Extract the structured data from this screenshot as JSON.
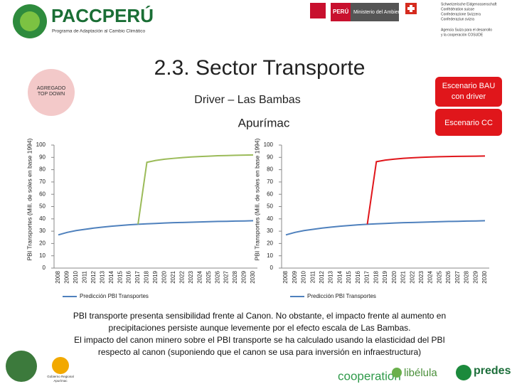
{
  "header": {
    "logo_title": "PACCPERÚ",
    "logo_subtitle": "Programa de Adaptación al Cambio Climático",
    "peru": "PERÚ",
    "ministry": "Ministerio del Ambiente",
    "swiss": [
      "Schweizerische Eidgenossenschaft",
      "Confédération suisse",
      "Confederazione Svizzera",
      "Confederaziun svizra"
    ],
    "agency": [
      "Agencia Suiza para el desarrollo",
      "y la cooperación COSUDE"
    ]
  },
  "slide": {
    "title": "2.3. Sector Transporte",
    "badge": [
      "AGREGADO",
      "TOP DOWN"
    ],
    "driver": "Driver – Las Bambas",
    "region": "Apurímac",
    "scenario_bau": [
      "Escenario BAU",
      "con driver"
    ],
    "scenario_cc": "Escenario CC"
  },
  "chart_data": [
    {
      "type": "line",
      "y_label": "PBI Transportes (Mill. de soles en base 1994)",
      "categories": [
        "2008",
        "2009",
        "2010",
        "2011",
        "2012",
        "2013",
        "2014",
        "2015",
        "2016",
        "2017",
        "2018",
        "2019",
        "2020",
        "2021",
        "2022",
        "2023",
        "2024",
        "2025",
        "2026",
        "2027",
        "2028",
        "2029",
        "2030"
      ],
      "ylim": [
        0,
        100
      ],
      "yticks": [
        0,
        10,
        20,
        30,
        40,
        50,
        60,
        70,
        80,
        90,
        100
      ],
      "series": [
        {
          "name": "Predicción PBI Transportes",
          "color": "#4f81bd",
          "values": [
            27,
            29,
            30.5,
            31.5,
            32.5,
            33.3,
            34,
            34.6,
            35.2,
            35.6,
            36,
            36.3,
            36.6,
            36.9,
            37.1,
            37.3,
            37.5,
            37.7,
            37.9,
            38,
            38.2,
            38.3,
            38.5
          ]
        },
        {
          "color": "#9bbb59",
          "values": [
            null,
            null,
            null,
            null,
            null,
            null,
            null,
            null,
            null,
            35.6,
            86,
            87.5,
            88.5,
            89.2,
            89.8,
            90.3,
            90.7,
            91,
            91.3,
            91.5,
            91.7,
            91.8,
            92
          ]
        }
      ]
    },
    {
      "type": "line",
      "y_label": "PBI Transportes (Mill. de soles en base 1994)",
      "categories": [
        "2008",
        "2009",
        "2010",
        "2011",
        "2012",
        "2013",
        "2014",
        "2015",
        "2016",
        "2017",
        "2018",
        "2019",
        "2020",
        "2021",
        "2022",
        "2023",
        "2024",
        "2025",
        "2026",
        "2027",
        "2028",
        "2029",
        "2030"
      ],
      "ylim": [
        0,
        100
      ],
      "yticks": [
        0,
        10,
        20,
        30,
        40,
        50,
        60,
        70,
        80,
        90,
        100
      ],
      "series": [
        {
          "name": "Predicción PBI Transportes",
          "color": "#4f81bd",
          "values": [
            27,
            29,
            30.5,
            31.5,
            32.5,
            33.3,
            34,
            34.6,
            35.2,
            35.6,
            36,
            36.3,
            36.6,
            36.9,
            37.1,
            37.3,
            37.5,
            37.7,
            37.9,
            38,
            38.2,
            38.3,
            38.5
          ]
        },
        {
          "color": "#e0161b",
          "values": [
            null,
            null,
            null,
            null,
            null,
            null,
            null,
            null,
            null,
            35.6,
            86.5,
            87.8,
            88.6,
            89.2,
            89.7,
            90,
            90.3,
            90.5,
            90.7,
            90.8,
            90.9,
            91,
            91.1
          ]
        }
      ]
    }
  ],
  "body": {
    "lines": [
      "PBI transporte presenta sensibilidad frente al Canon. No obstante, el impacto frente al aumento en",
      "precipitaciones persiste aunque levemente por el efecto escala de Las Bambas.",
      "El impacto del canon minero sobre el PBI transporte se ha calculado usando la elasticidad del PBI",
      "respecto al canon (suponiendo que el canon se usa para inversión en infraestructura)"
    ]
  },
  "footer": {
    "gov": [
      "Gobierno Regional",
      "Apurímac"
    ],
    "coop": "cooperation",
    "libelula": "libélula",
    "predes": "predes"
  }
}
